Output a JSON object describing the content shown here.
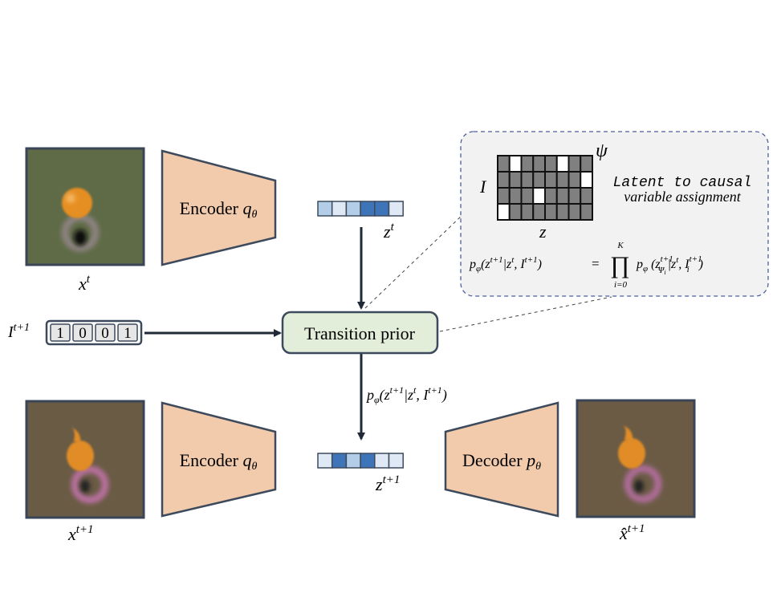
{
  "x_t": {
    "base": "x",
    "sup": "t"
  },
  "x_t1": {
    "base": "x",
    "sup": "t+1"
  },
  "intervention": {
    "base": "I",
    "sup": "t+1",
    "bits": [
      "1",
      "0",
      "0",
      "1"
    ]
  },
  "encoder_top": {
    "label": "Encoder",
    "param": "q",
    "param_sub": "θ"
  },
  "encoder_bottom": {
    "label": "Encoder",
    "param": "q",
    "param_sub": "θ"
  },
  "decoder": {
    "label": "Decoder",
    "param": "p",
    "param_sub": "θ"
  },
  "latent_t": {
    "base": "z",
    "sup": "t"
  },
  "latent_t1": {
    "base": "z",
    "sup": "t+1"
  },
  "transition": {
    "label": "Transition prior"
  },
  "prior_label": [
    "p",
    "φ",
    "(z",
    "t+1",
    "|z",
    "t",
    ", I",
    "t+1",
    ")"
  ],
  "output": {
    "base": "x̂",
    "sup": "t+1"
  },
  "inset": {
    "psi": "ψ",
    "row_label": "I",
    "col_label": "z",
    "caption": [
      "Latent to causal",
      "variable assignment"
    ],
    "formula": {
      "lhs": [
        "p",
        "φ",
        "(z",
        "t+1",
        "|z",
        "t",
        ", I",
        "t+1",
        ")"
      ],
      "eq": "=",
      "prod": "∏",
      "prod_upper": "K",
      "prod_lower": "i=0",
      "rhs": [
        "p",
        "φ",
        " (z",
        "t+1",
        "Ψ",
        "i",
        "|z",
        "t",
        ", I",
        "t+1",
        "i",
        ")"
      ]
    }
  }
}
